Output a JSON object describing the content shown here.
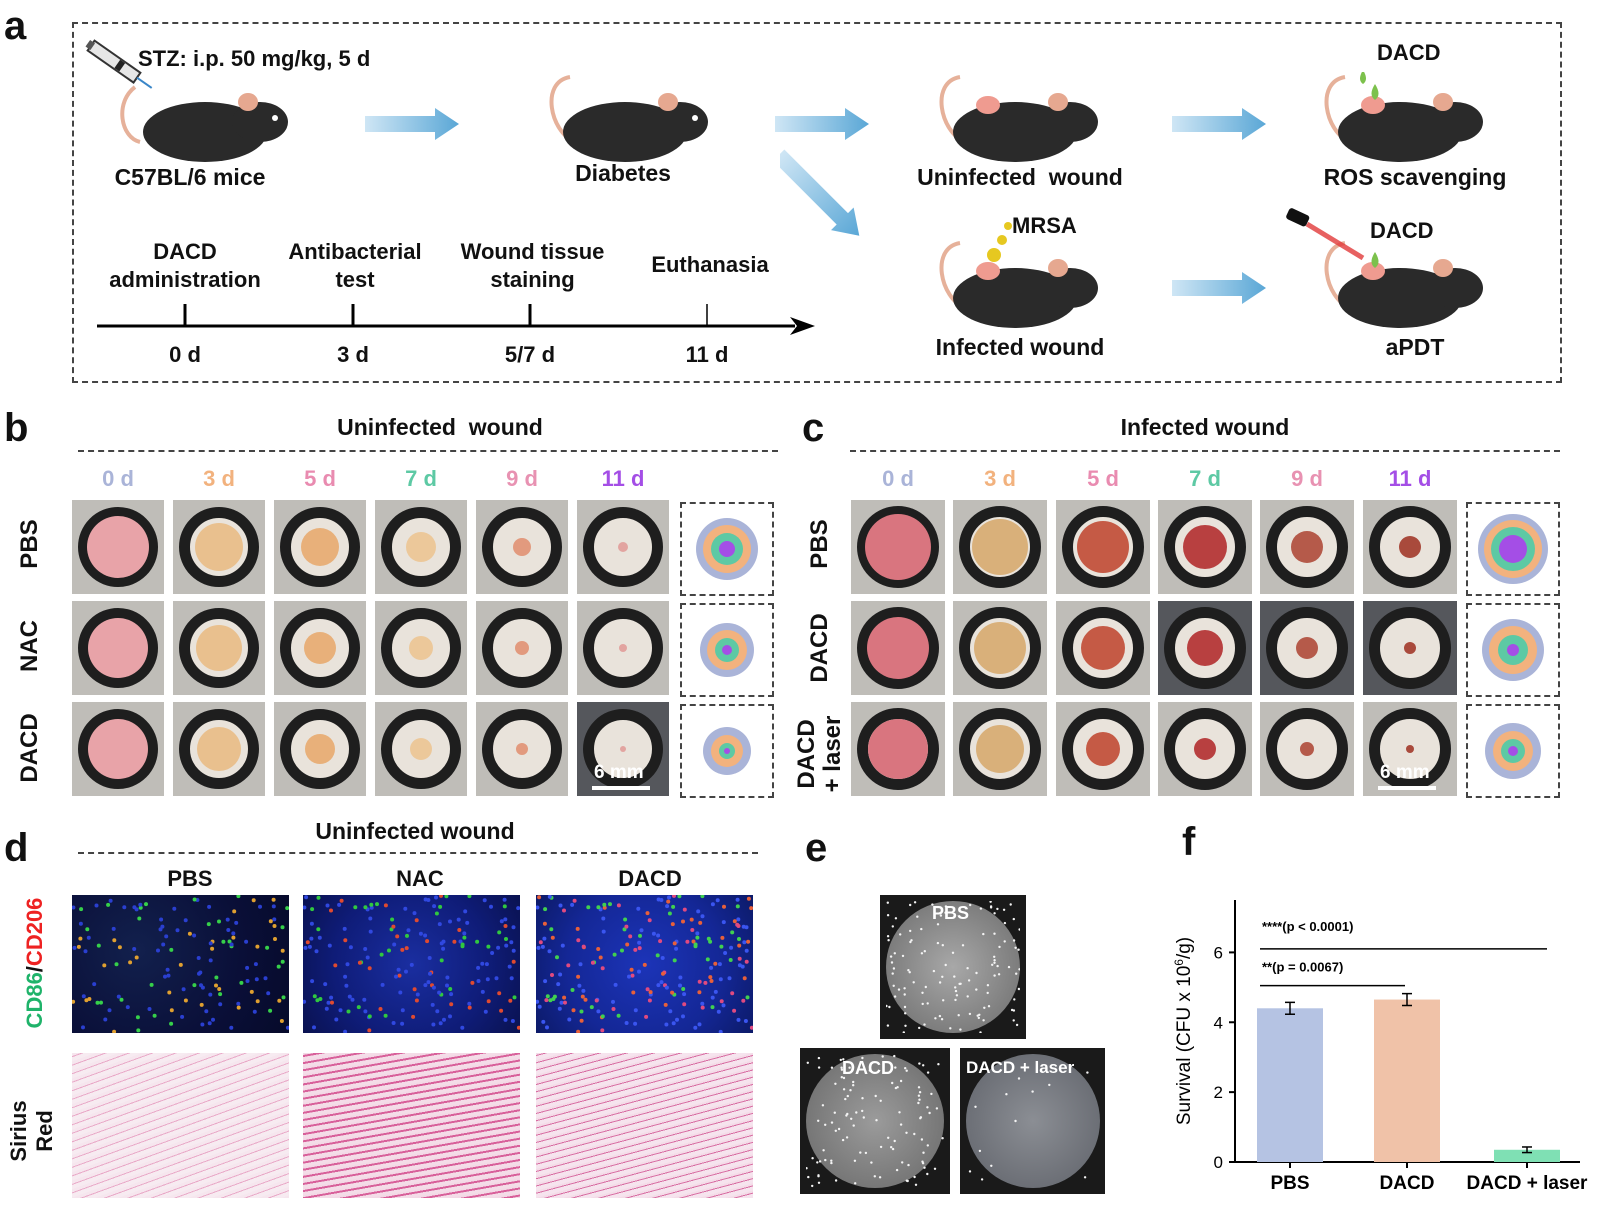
{
  "panel_a": {
    "letter": "a",
    "stz_label": "STZ: i.p. 50 mg/kg, 5 d",
    "mouse_labels": [
      "C57BL/6 mice",
      "Diabetes",
      "Uninfected  wound",
      "ROS scavenging",
      "Infected wound",
      "aPDT"
    ],
    "dacd_top": "DACD",
    "dacd_bottom": "DACD",
    "mrsa": "MRSA",
    "timeline_events": [
      "DACD\nadministration",
      "Antibacterial\ntest",
      "Wound tissue\nstaining",
      "Euthanasia"
    ],
    "timeline_days": [
      "0 d",
      "3 d",
      "5/7 d",
      "11 d"
    ]
  },
  "panel_b": {
    "letter": "b",
    "title": "Uninfected  wound",
    "days": [
      "0 d",
      "3 d",
      "5 d",
      "7 d",
      "9 d",
      "11 d"
    ],
    "rows": [
      "PBS",
      "NAC",
      "DACD"
    ],
    "scale": "6 mm"
  },
  "panel_c": {
    "letter": "c",
    "title": "Infected wound",
    "days": [
      "0 d",
      "3 d",
      "5 d",
      "7 d",
      "9 d",
      "11 d"
    ],
    "rows": [
      "PBS",
      "DACD",
      "DACD\n+ laser"
    ],
    "scale": "6 mm"
  },
  "day_colors": [
    "#aab4d8",
    "#f2b27e",
    "#e98bb0",
    "#5dc9a4",
    "#e892b2",
    "#a44ee6"
  ],
  "panel_d": {
    "letter": "d",
    "title": "Uninfected wound",
    "columns": [
      "PBS",
      "NAC",
      "DACD"
    ],
    "row1_label_a": "CD86",
    "row1_label_sep": "/",
    "row1_label_b": "CD206",
    "row2_label": "Sirius\nRed"
  },
  "panel_e": {
    "letter": "e",
    "plates": [
      "PBS",
      "DACD",
      "DACD + laser"
    ]
  },
  "panel_f": {
    "letter": "f",
    "sig1": "****(p < 0.0001)",
    "sig2": "**(p = 0.0067)"
  },
  "chart_data": {
    "type": "bar",
    "categories": [
      "PBS",
      "DACD",
      "DACD + laser"
    ],
    "values": [
      4.4,
      4.65,
      0.35
    ],
    "errors": [
      0.17,
      0.17,
      0.08
    ],
    "colors": [
      "#b5c3e3",
      "#f0c2a8",
      "#7fe0b4"
    ],
    "ylabel": "Survival (CFU x 10",
    "ylabel_sup": "6",
    "ylabel_end": "/g)",
    "ylim": [
      0,
      7.5
    ],
    "yticks": [
      0,
      2,
      4,
      6
    ],
    "annotations": [
      "****(p < 0.0001)",
      "**(p = 0.0067)"
    ]
  }
}
